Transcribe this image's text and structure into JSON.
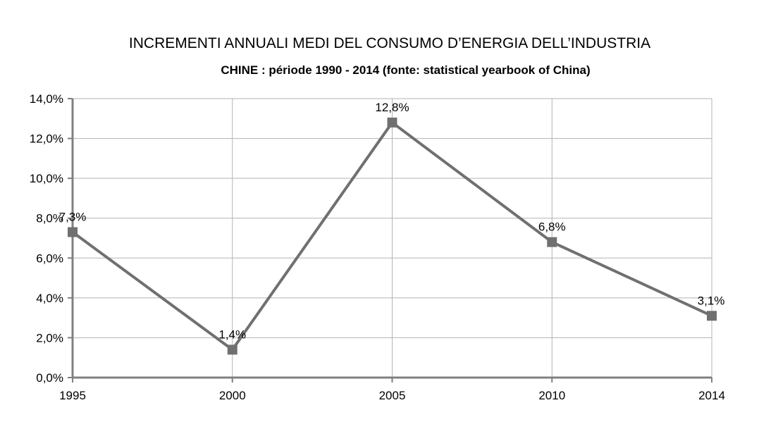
{
  "chart_data": {
    "type": "line",
    "title": "INCREMENTI ANNUALI MEDI DEL CONSUMO D’ENERGIA DELL’INDUSTRIA",
    "subtitle": "CHINE : période 1990 - 2014 (fonte: statistical yearbook of China)",
    "xlabel": "",
    "ylabel": "",
    "categories": [
      "1995",
      "2000",
      "2005",
      "2010",
      "2014"
    ],
    "series": [
      {
        "values": [
          7.3,
          1.4,
          12.8,
          6.8,
          3.1
        ],
        "labels": [
          "7,3%",
          "1,4%",
          "12,8%",
          "6,8%",
          "3,1%"
        ],
        "color": "#707070",
        "marker": "square"
      }
    ],
    "ylim": [
      0,
      14
    ],
    "yticks": [
      0,
      2,
      4,
      6,
      8,
      10,
      12,
      14
    ],
    "ytick_labels": [
      "0,0%",
      "2,0%",
      "4,0%",
      "6,0%",
      "8,0%",
      "10,0%",
      "12,0%",
      "14,0%"
    ],
    "grid": true,
    "legend": "none"
  }
}
